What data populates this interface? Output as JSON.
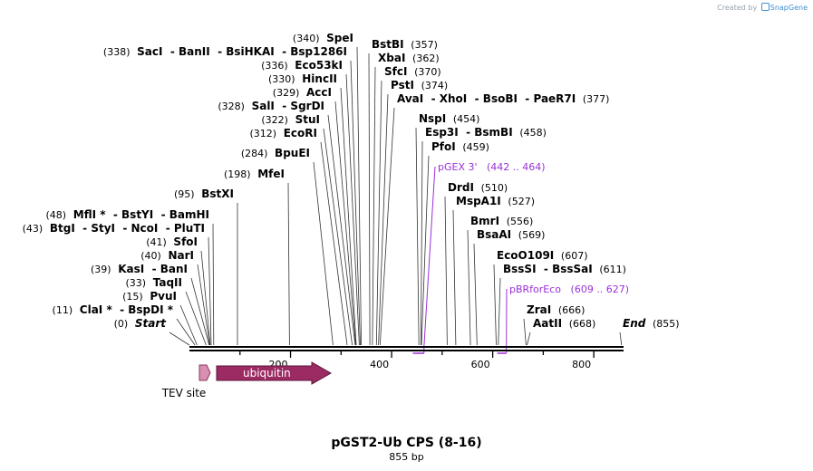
{
  "credit": {
    "prefix": "Created by",
    "brand": "SnapGene"
  },
  "title": "pGST2-Ub CPS (8-16)",
  "length_label": "855 bp",
  "sequence_length": 855,
  "axis_ticks": [
    "200",
    "400",
    "600",
    "800"
  ],
  "colors": {
    "primer": "#9b30d9",
    "feature_ubiquitin": "#9c2b63",
    "feature_tev": "#d98fb0",
    "text": "#000000"
  },
  "sites": [
    {
      "pos": "(0)",
      "names": [
        "Start"
      ],
      "italic": true
    },
    {
      "pos": "(11)",
      "names": [
        "ClaI *",
        "BspDI *"
      ]
    },
    {
      "pos": "(15)",
      "names": [
        "PvuI"
      ]
    },
    {
      "pos": "(33)",
      "names": [
        "TaqII"
      ]
    },
    {
      "pos": "(39)",
      "names": [
        "KasI",
        "BanI"
      ]
    },
    {
      "pos": "(40)",
      "names": [
        "NarI"
      ]
    },
    {
      "pos": "(41)",
      "names": [
        "SfoI"
      ]
    },
    {
      "pos": "(43)",
      "names": [
        "BtgI",
        "StyI",
        "NcoI",
        "PluTI"
      ]
    },
    {
      "pos": "(48)",
      "names": [
        "MflI *",
        "BstYI",
        "BamHI"
      ]
    },
    {
      "pos": "(95)",
      "names": [
        "BstXI"
      ]
    },
    {
      "pos": "(198)",
      "names": [
        "MfeI"
      ]
    },
    {
      "pos": "(284)",
      "names": [
        "BpuEI"
      ]
    },
    {
      "pos": "(312)",
      "names": [
        "EcoRI"
      ]
    },
    {
      "pos": "(322)",
      "names": [
        "StuI"
      ]
    },
    {
      "pos": "(328)",
      "names": [
        "SalI",
        "SgrDI"
      ]
    },
    {
      "pos": "(329)",
      "names": [
        "AccI"
      ]
    },
    {
      "pos": "(330)",
      "names": [
        "HincII"
      ]
    },
    {
      "pos": "(336)",
      "names": [
        "Eco53kI"
      ]
    },
    {
      "pos": "(338)",
      "names": [
        "SacI",
        "BanII",
        "BsiHKAI",
        "Bsp1286I"
      ]
    },
    {
      "pos": "(340)",
      "names": [
        "SpeI"
      ]
    },
    {
      "pos": "(357)",
      "names": [
        "BstBI"
      ]
    },
    {
      "pos": "(362)",
      "names": [
        "XbaI"
      ]
    },
    {
      "pos": "(370)",
      "names": [
        "SfcI"
      ]
    },
    {
      "pos": "(374)",
      "names": [
        "PstI"
      ]
    },
    {
      "pos": "(377)",
      "names": [
        "AvaI",
        "XhoI",
        "BsoBI",
        "PaeR7I"
      ]
    },
    {
      "pos": "(454)",
      "names": [
        "NspI"
      ]
    },
    {
      "pos": "(458)",
      "names": [
        "Esp3I",
        "BsmBI"
      ]
    },
    {
      "pos": "(459)",
      "names": [
        "PfoI"
      ]
    },
    {
      "pos": "(510)",
      "names": [
        "DrdI"
      ]
    },
    {
      "pos": "(527)",
      "names": [
        "MspA1I"
      ]
    },
    {
      "pos": "(556)",
      "names": [
        "BmrI"
      ]
    },
    {
      "pos": "(569)",
      "names": [
        "BsaAI"
      ]
    },
    {
      "pos": "(607)",
      "names": [
        "EcoO109I"
      ]
    },
    {
      "pos": "(611)",
      "names": [
        "BssSI",
        "BssSaI"
      ]
    },
    {
      "pos": "(666)",
      "names": [
        "ZraI"
      ]
    },
    {
      "pos": "(668)",
      "names": [
        "AatII"
      ]
    },
    {
      "pos": "(855)",
      "names": [
        "End"
      ],
      "italic": true
    }
  ],
  "primers": [
    {
      "name": "pGEX 3'",
      "range": "(442 .. 464)"
    },
    {
      "name": "pBRforEco",
      "range": "(609 .. 627)"
    }
  ],
  "features": [
    {
      "name": "TEV site"
    },
    {
      "name": "ubiquitin"
    }
  ]
}
